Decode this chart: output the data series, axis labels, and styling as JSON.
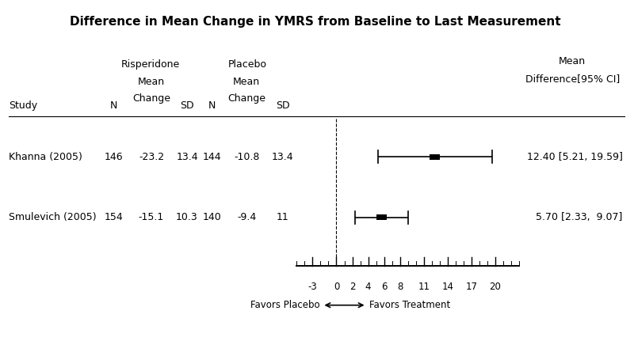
{
  "title": "Difference in Mean Change in YMRS from Baseline to Last Measurement",
  "studies": [
    {
      "name": "Khanna (2005)",
      "risp_n": 146,
      "risp_mean": -23.2,
      "risp_sd": 13.4,
      "plac_n": 144,
      "plac_mean": -10.8,
      "plac_sd": 13.4,
      "mean_diff": 12.4,
      "ci_low": 5.21,
      "ci_high": 19.59,
      "label": "12.40 [5.21, 19.59]"
    },
    {
      "name": "Smulevich (2005)",
      "risp_n": 154,
      "risp_mean": -15.1,
      "risp_sd": 10.3,
      "plac_n": 140,
      "plac_mean": -9.4,
      "plac_sd": 11,
      "mean_diff": 5.7,
      "ci_low": 2.33,
      "ci_high": 9.07,
      "label": "5.70 [2.33,  9.07]"
    }
  ],
  "x_ticks": [
    -3,
    0,
    2,
    4,
    6,
    8,
    11,
    14,
    17,
    20
  ],
  "x_min": -5,
  "x_max": 23,
  "favors_left": "Favors Placebo",
  "favors_right": "Favors Treatment"
}
